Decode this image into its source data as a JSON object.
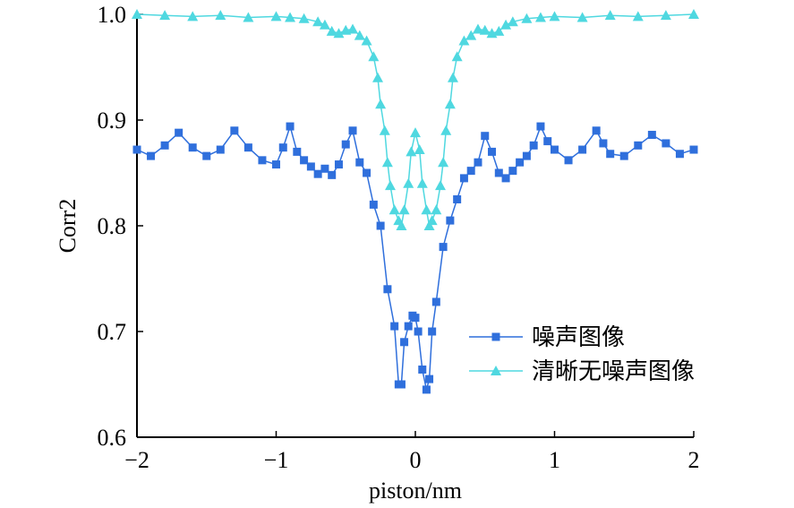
{
  "chart_data": {
    "type": "line",
    "xlabel": "piston/nm",
    "ylabel": "Corr2",
    "xlim": [
      -2,
      2
    ],
    "ylim": [
      0.6,
      1.0
    ],
    "xticks": [
      -2,
      -1,
      0,
      1,
      2
    ],
    "xtick_labels": [
      "−2",
      "−1",
      "0",
      "1",
      "2"
    ],
    "yticks": [
      0.6,
      0.7,
      0.8,
      0.9,
      1.0
    ],
    "ytick_labels": [
      "0.6",
      "0.7",
      "0.8",
      "0.9",
      "1.0"
    ],
    "grid": false,
    "legend_position": "lower-right",
    "series": [
      {
        "name": "噪声图像",
        "color": "#2f6fdc",
        "marker": "square",
        "x": [
          -2.0,
          -1.9,
          -1.8,
          -1.7,
          -1.6,
          -1.5,
          -1.4,
          -1.3,
          -1.2,
          -1.1,
          -1.0,
          -0.95,
          -0.9,
          -0.85,
          -0.8,
          -0.75,
          -0.7,
          -0.65,
          -0.6,
          -0.55,
          -0.5,
          -0.45,
          -0.4,
          -0.35,
          -0.3,
          -0.25,
          -0.2,
          -0.15,
          -0.12,
          -0.1,
          -0.08,
          -0.05,
          -0.02,
          0.0,
          0.02,
          0.05,
          0.08,
          0.1,
          0.12,
          0.15,
          0.2,
          0.25,
          0.3,
          0.35,
          0.4,
          0.45,
          0.5,
          0.55,
          0.6,
          0.65,
          0.7,
          0.75,
          0.8,
          0.85,
          0.9,
          0.95,
          1.0,
          1.1,
          1.2,
          1.3,
          1.35,
          1.4,
          1.5,
          1.6,
          1.7,
          1.8,
          1.9,
          2.0
        ],
        "y": [
          0.872,
          0.866,
          0.876,
          0.888,
          0.874,
          0.866,
          0.872,
          0.89,
          0.874,
          0.862,
          0.858,
          0.874,
          0.894,
          0.87,
          0.862,
          0.856,
          0.849,
          0.854,
          0.848,
          0.858,
          0.877,
          0.89,
          0.86,
          0.85,
          0.82,
          0.8,
          0.74,
          0.705,
          0.65,
          0.65,
          0.69,
          0.705,
          0.715,
          0.713,
          0.7,
          0.664,
          0.645,
          0.655,
          0.7,
          0.728,
          0.78,
          0.805,
          0.825,
          0.845,
          0.852,
          0.86,
          0.885,
          0.87,
          0.85,
          0.845,
          0.852,
          0.86,
          0.866,
          0.876,
          0.894,
          0.88,
          0.872,
          0.862,
          0.872,
          0.89,
          0.878,
          0.868,
          0.866,
          0.876,
          0.886,
          0.878,
          0.868,
          0.872
        ]
      },
      {
        "name": "清晰无噪声图像",
        "color": "#4fd8e0",
        "marker": "triangle",
        "x": [
          -2.0,
          -1.8,
          -1.6,
          -1.4,
          -1.2,
          -1.0,
          -0.9,
          -0.8,
          -0.7,
          -0.65,
          -0.6,
          -0.55,
          -0.5,
          -0.45,
          -0.4,
          -0.35,
          -0.3,
          -0.27,
          -0.25,
          -0.22,
          -0.2,
          -0.18,
          -0.15,
          -0.12,
          -0.1,
          -0.08,
          -0.05,
          -0.03,
          0.0,
          0.03,
          0.05,
          0.08,
          0.1,
          0.12,
          0.15,
          0.18,
          0.2,
          0.22,
          0.25,
          0.27,
          0.3,
          0.35,
          0.4,
          0.45,
          0.5,
          0.55,
          0.6,
          0.65,
          0.7,
          0.8,
          0.9,
          1.0,
          1.2,
          1.4,
          1.6,
          1.8,
          2.0
        ],
        "y": [
          1.0,
          0.999,
          0.998,
          0.999,
          0.997,
          0.998,
          0.997,
          0.996,
          0.993,
          0.99,
          0.984,
          0.982,
          0.985,
          0.986,
          0.98,
          0.975,
          0.96,
          0.94,
          0.915,
          0.89,
          0.86,
          0.838,
          0.815,
          0.805,
          0.8,
          0.815,
          0.84,
          0.87,
          0.888,
          0.872,
          0.84,
          0.815,
          0.8,
          0.805,
          0.815,
          0.838,
          0.86,
          0.89,
          0.915,
          0.94,
          0.96,
          0.975,
          0.98,
          0.986,
          0.985,
          0.982,
          0.984,
          0.99,
          0.993,
          0.996,
          0.997,
          0.998,
          0.997,
          0.999,
          0.998,
          0.999,
          1.0
        ]
      }
    ]
  }
}
